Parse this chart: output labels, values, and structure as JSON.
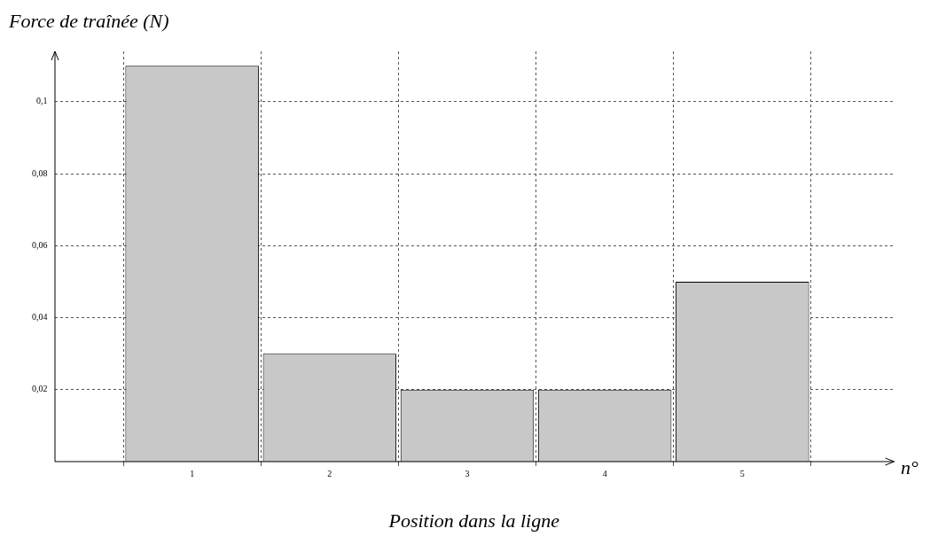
{
  "chart_data": {
    "type": "bar",
    "ylabel": "Force de traînée (N)",
    "xlabel": "Position dans la ligne",
    "annotations": [
      "n°"
    ],
    "x": [
      1,
      2,
      3,
      4,
      5
    ],
    "values": [
      0.11,
      0.03,
      0.02,
      0.02,
      0.05
    ],
    "color": "#c8c8c8",
    "xlim": [
      0,
      6.1
    ],
    "xticks": [
      1,
      2,
      3,
      4,
      5
    ],
    "ylim": [
      0,
      0.114
    ],
    "yticks": [
      {
        "value": 0.02,
        "label": "0,02"
      },
      {
        "value": 0.04,
        "label": "0,04"
      },
      {
        "value": 0.06,
        "label": "0,06"
      },
      {
        "value": 0.08,
        "label": "0,08"
      },
      {
        "value": 0.1,
        "label": "0,1"
      }
    ],
    "grid": true
  }
}
